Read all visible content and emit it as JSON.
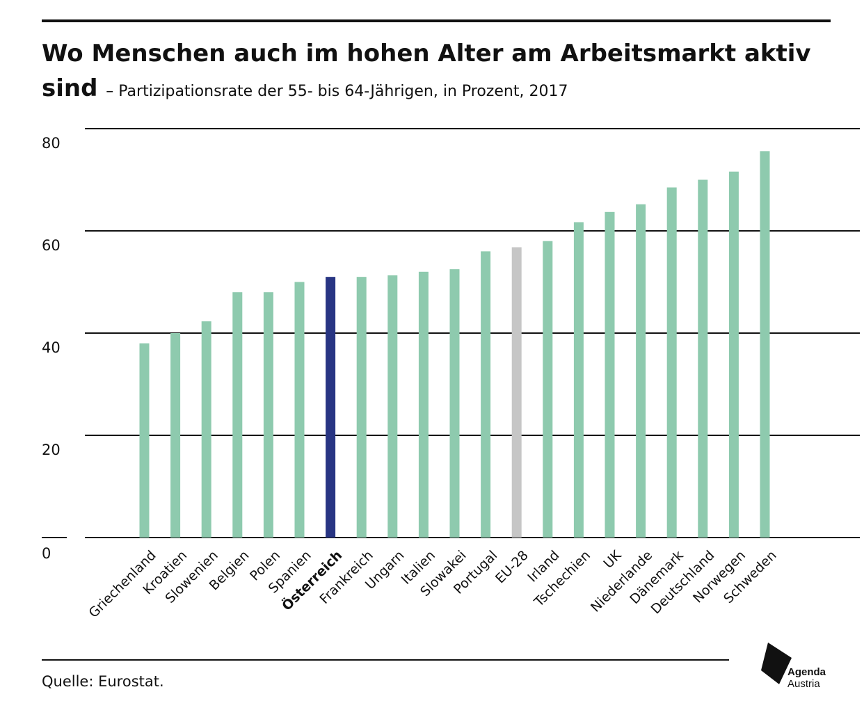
{
  "header": {
    "title": "Wo Menschen auch im hohen Alter am Arbeitsmarkt aktiv sind",
    "subtitle": "– Partizipationsrate der 55- bis 64-Jährigen, in Prozent, 2017"
  },
  "footer": {
    "source": "Quelle: Eurostat."
  },
  "logo": {
    "line1": "Agenda",
    "line2": "Austria"
  },
  "colors": {
    "bar": "#8ecaae",
    "highlight": "#283583",
    "eu": "#c6c6c6",
    "grid": "#111111",
    "text": "#111111"
  },
  "chart_data": {
    "type": "bar",
    "categories": [
      "Griechenland",
      "Kroatien",
      "Slowenien",
      "Belgien",
      "Polen",
      "Spanien",
      "Österreich",
      "Frankreich",
      "Ungarn",
      "Italien",
      "Slowakei",
      "Portugal",
      "EU-28",
      "Irland",
      "Tschechien",
      "UK",
      "Niederlande",
      "Dänemark",
      "Deutschland",
      "Norwegen",
      "Schweden"
    ],
    "values": [
      38.0,
      40.0,
      42.3,
      48.0,
      48.0,
      50.0,
      51.0,
      51.0,
      51.3,
      52.0,
      52.5,
      56.0,
      56.8,
      58.0,
      61.7,
      63.7,
      65.2,
      68.5,
      70.0,
      71.6,
      75.6
    ],
    "highlight": "Österreich",
    "reference": "EU-28",
    "yticks": [
      0,
      20,
      40,
      60,
      80
    ],
    "ylim": [
      0,
      80
    ],
    "grid": true,
    "xlabel": "",
    "ylabel": ""
  }
}
